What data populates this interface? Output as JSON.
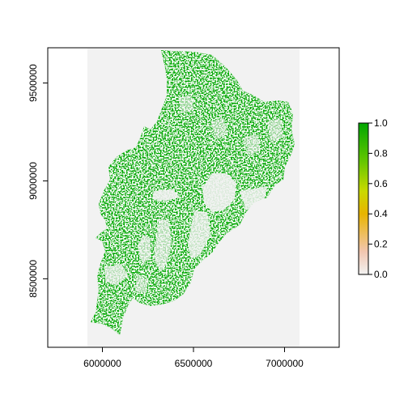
{
  "map": {
    "type": "raster",
    "x_ticks": [
      {
        "value": 6000000,
        "label": "6000000"
      },
      {
        "value": 6500000,
        "label": "6500000"
      },
      {
        "value": 7000000,
        "label": "7000000"
      }
    ],
    "y_ticks": [
      {
        "value": 8500000,
        "label": "8500000"
      },
      {
        "value": 9000000,
        "label": "9000000"
      },
      {
        "value": 9500000,
        "label": "9500000"
      }
    ],
    "xlim": [
      5700000,
      7300000
    ],
    "ylim": [
      8150000,
      9680000
    ],
    "raster_extent_x": [
      5950000,
      7100000
    ],
    "background_color": "#f2f2f2",
    "value_color": "#00a600"
  },
  "legend": {
    "range": [
      0.0,
      1.0
    ],
    "ticks": [
      {
        "value": 0.0,
        "label": "0.0"
      },
      {
        "value": 0.2,
        "label": "0.2"
      },
      {
        "value": 0.4,
        "label": "0.4"
      },
      {
        "value": 0.6,
        "label": "0.6"
      },
      {
        "value": 0.8,
        "label": "0.8"
      },
      {
        "value": 1.0,
        "label": "1.0"
      }
    ],
    "colors": [
      "#f2f2f2",
      "#f2c6b0",
      "#e8b400",
      "#c9d900",
      "#63c600",
      "#00a600"
    ]
  }
}
